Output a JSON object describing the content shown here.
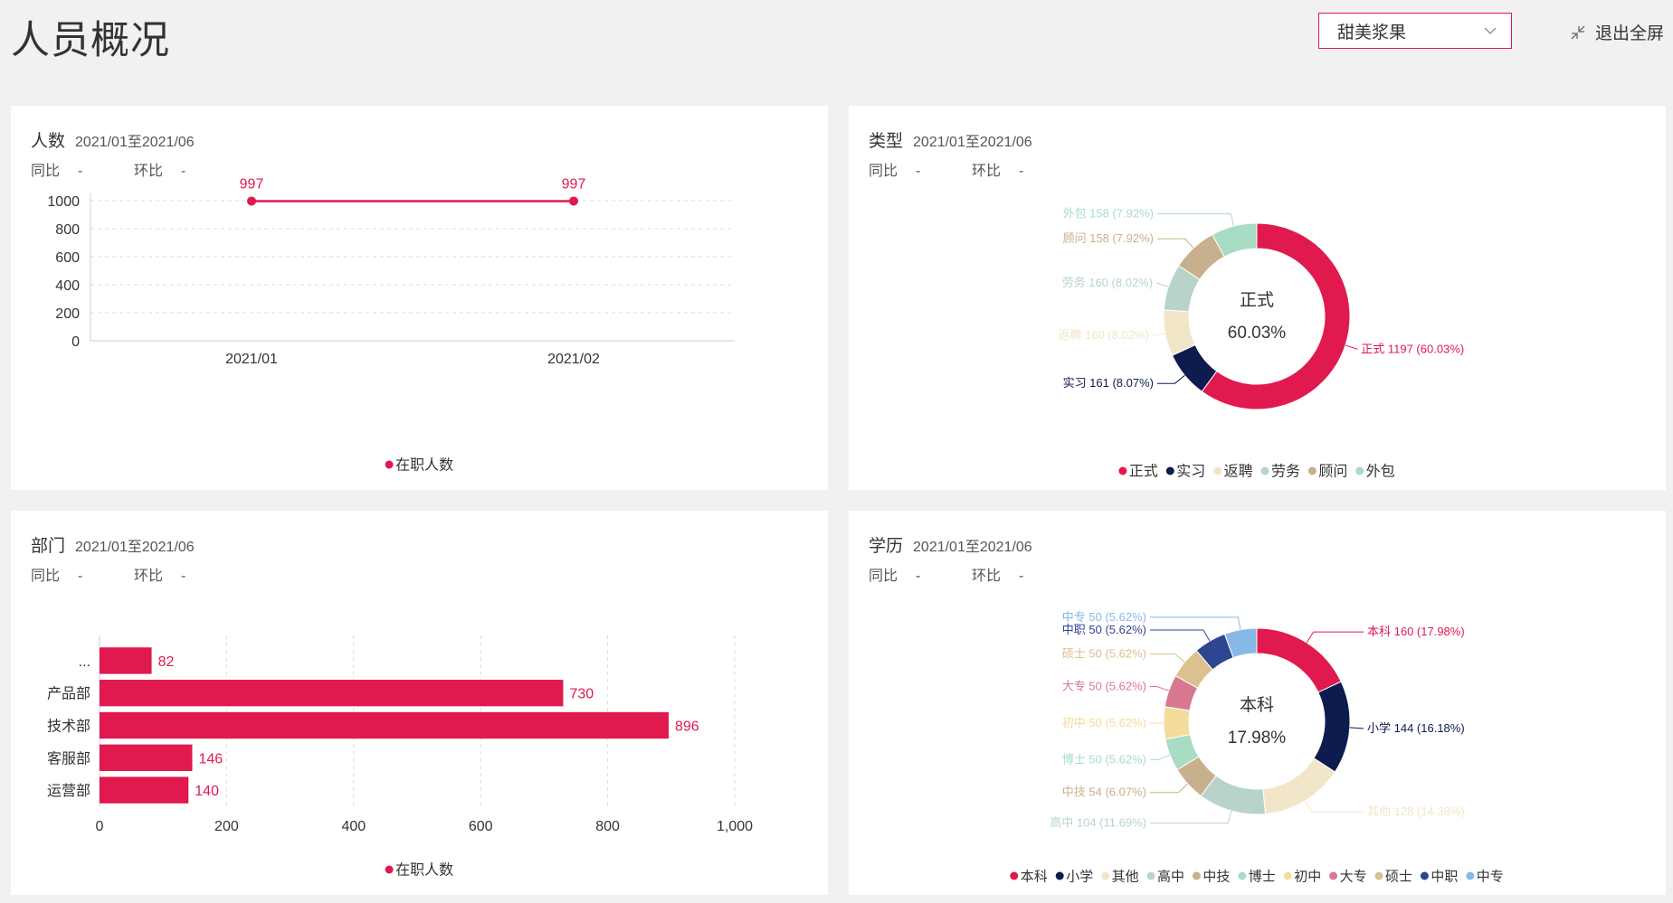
{
  "page": {
    "title": "人员概况"
  },
  "header": {
    "dropdown_value": "甜美浆果",
    "exit_label": "退出全屏"
  },
  "colors": {
    "accent": "#e0194f",
    "navy": "#0d1b4e",
    "cream": "#f2e6c9",
    "sage": "#b8d4c8",
    "tan": "#c8b08c",
    "mint": "#a8dcc4",
    "yellow": "#f3dc9c",
    "pink": "#d87890",
    "gold": "#dcc090",
    "blue": "#2e4590",
    "sky": "#88b8e8"
  },
  "cards": {
    "headcount": {
      "name": "人数",
      "range": "2021/01至2021/06",
      "yoy_label": "同比",
      "yoy_value": "-",
      "mom_label": "环比",
      "mom_value": "-"
    },
    "type": {
      "name": "类型",
      "range": "2021/01至2021/06",
      "yoy_label": "同比",
      "yoy_value": "-",
      "mom_label": "环比",
      "mom_value": "-"
    },
    "dept": {
      "name": "部门",
      "range": "2021/01至2021/06",
      "yoy_label": "同比",
      "yoy_value": "-",
      "mom_label": "环比",
      "mom_value": "-"
    },
    "education": {
      "name": "学历",
      "range": "2021/01至2021/06",
      "yoy_label": "同比",
      "yoy_value": "-",
      "mom_label": "环比",
      "mom_value": "-"
    }
  },
  "chart_data": [
    {
      "id": "headcount",
      "type": "line",
      "categories": [
        "2021/01",
        "2021/02"
      ],
      "series": [
        {
          "name": "在职人数",
          "values": [
            997,
            997
          ]
        }
      ],
      "data_labels": [
        "997",
        "997"
      ],
      "yticks": [
        "0",
        "200",
        "400",
        "600",
        "800",
        "1000"
      ],
      "ylim": [
        0,
        1000
      ],
      "grid": true,
      "legend": "bottom"
    },
    {
      "id": "type",
      "type": "pie",
      "donut": true,
      "center_label": "正式",
      "center_value": "60.03%",
      "slices": [
        {
          "name": "正式",
          "value": 1197,
          "label": "正式 1197 (60.03%)",
          "color": "#e0194f"
        },
        {
          "name": "实习",
          "value": 161,
          "label": "实习 161 (8.07%)",
          "color": "#0d1b4e"
        },
        {
          "name": "返聘",
          "value": 160,
          "label": "返聘 160 (8.02%)",
          "color": "#f2e6c9"
        },
        {
          "name": "劳务",
          "value": 160,
          "label": "劳务 160 (8.02%)",
          "color": "#b8d4c8"
        },
        {
          "name": "顾问",
          "value": 158,
          "label": "顾问 158 (7.92%)",
          "color": "#c8b08c"
        },
        {
          "name": "外包",
          "value": 158,
          "label": "外包 158 (7.92%)",
          "color": "#a8dcc4"
        }
      ],
      "legend": "bottom"
    },
    {
      "id": "dept",
      "type": "bar",
      "orientation": "horizontal",
      "categories": [
        "...",
        "产品部",
        "技术部",
        "客服部",
        "运营部"
      ],
      "series": [
        {
          "name": "在职人数",
          "values": [
            82,
            730,
            896,
            146,
            140
          ]
        }
      ],
      "data_labels": [
        "82",
        "730",
        "896",
        "146",
        "140"
      ],
      "xticks": [
        "0",
        "200",
        "400",
        "600",
        "800",
        "1,000"
      ],
      "xlim": [
        0,
        1000
      ],
      "grid": true,
      "legend": "bottom"
    },
    {
      "id": "education",
      "type": "pie",
      "donut": true,
      "center_label": "本科",
      "center_value": "17.98%",
      "slices": [
        {
          "name": "本科",
          "value": 160,
          "label": "本科 160 (17.98%)",
          "color": "#e0194f"
        },
        {
          "name": "小学",
          "value": 144,
          "label": "小学 144 (16.18%)",
          "color": "#0d1b4e"
        },
        {
          "name": "其他",
          "value": 128,
          "label": "其他 128 (14.38%)",
          "color": "#f2e6c9"
        },
        {
          "name": "高中",
          "value": 104,
          "label": "高中 104 (11.69%)",
          "color": "#b8d4c8"
        },
        {
          "name": "中技",
          "value": 54,
          "label": "中技 54 (6.07%)",
          "color": "#c8b08c"
        },
        {
          "name": "博士",
          "value": 50,
          "label": "博士 50 (5.62%)",
          "color": "#a8dcc4"
        },
        {
          "name": "初中",
          "value": 50,
          "label": "初中 50 (5.62%)",
          "color": "#f3dc9c"
        },
        {
          "name": "大专",
          "value": 50,
          "label": "大专 50 (5.62%)",
          "color": "#d87890"
        },
        {
          "name": "硕士",
          "value": 50,
          "label": "硕士 50 (5.62%)",
          "color": "#dcc090"
        },
        {
          "name": "中职",
          "value": 50,
          "label": "中职 50 (5.62%)",
          "color": "#2e4590"
        },
        {
          "name": "中专",
          "value": 50,
          "label": "中专 50 (5.62%)",
          "color": "#88b8e8"
        }
      ],
      "legend": "bottom"
    }
  ]
}
